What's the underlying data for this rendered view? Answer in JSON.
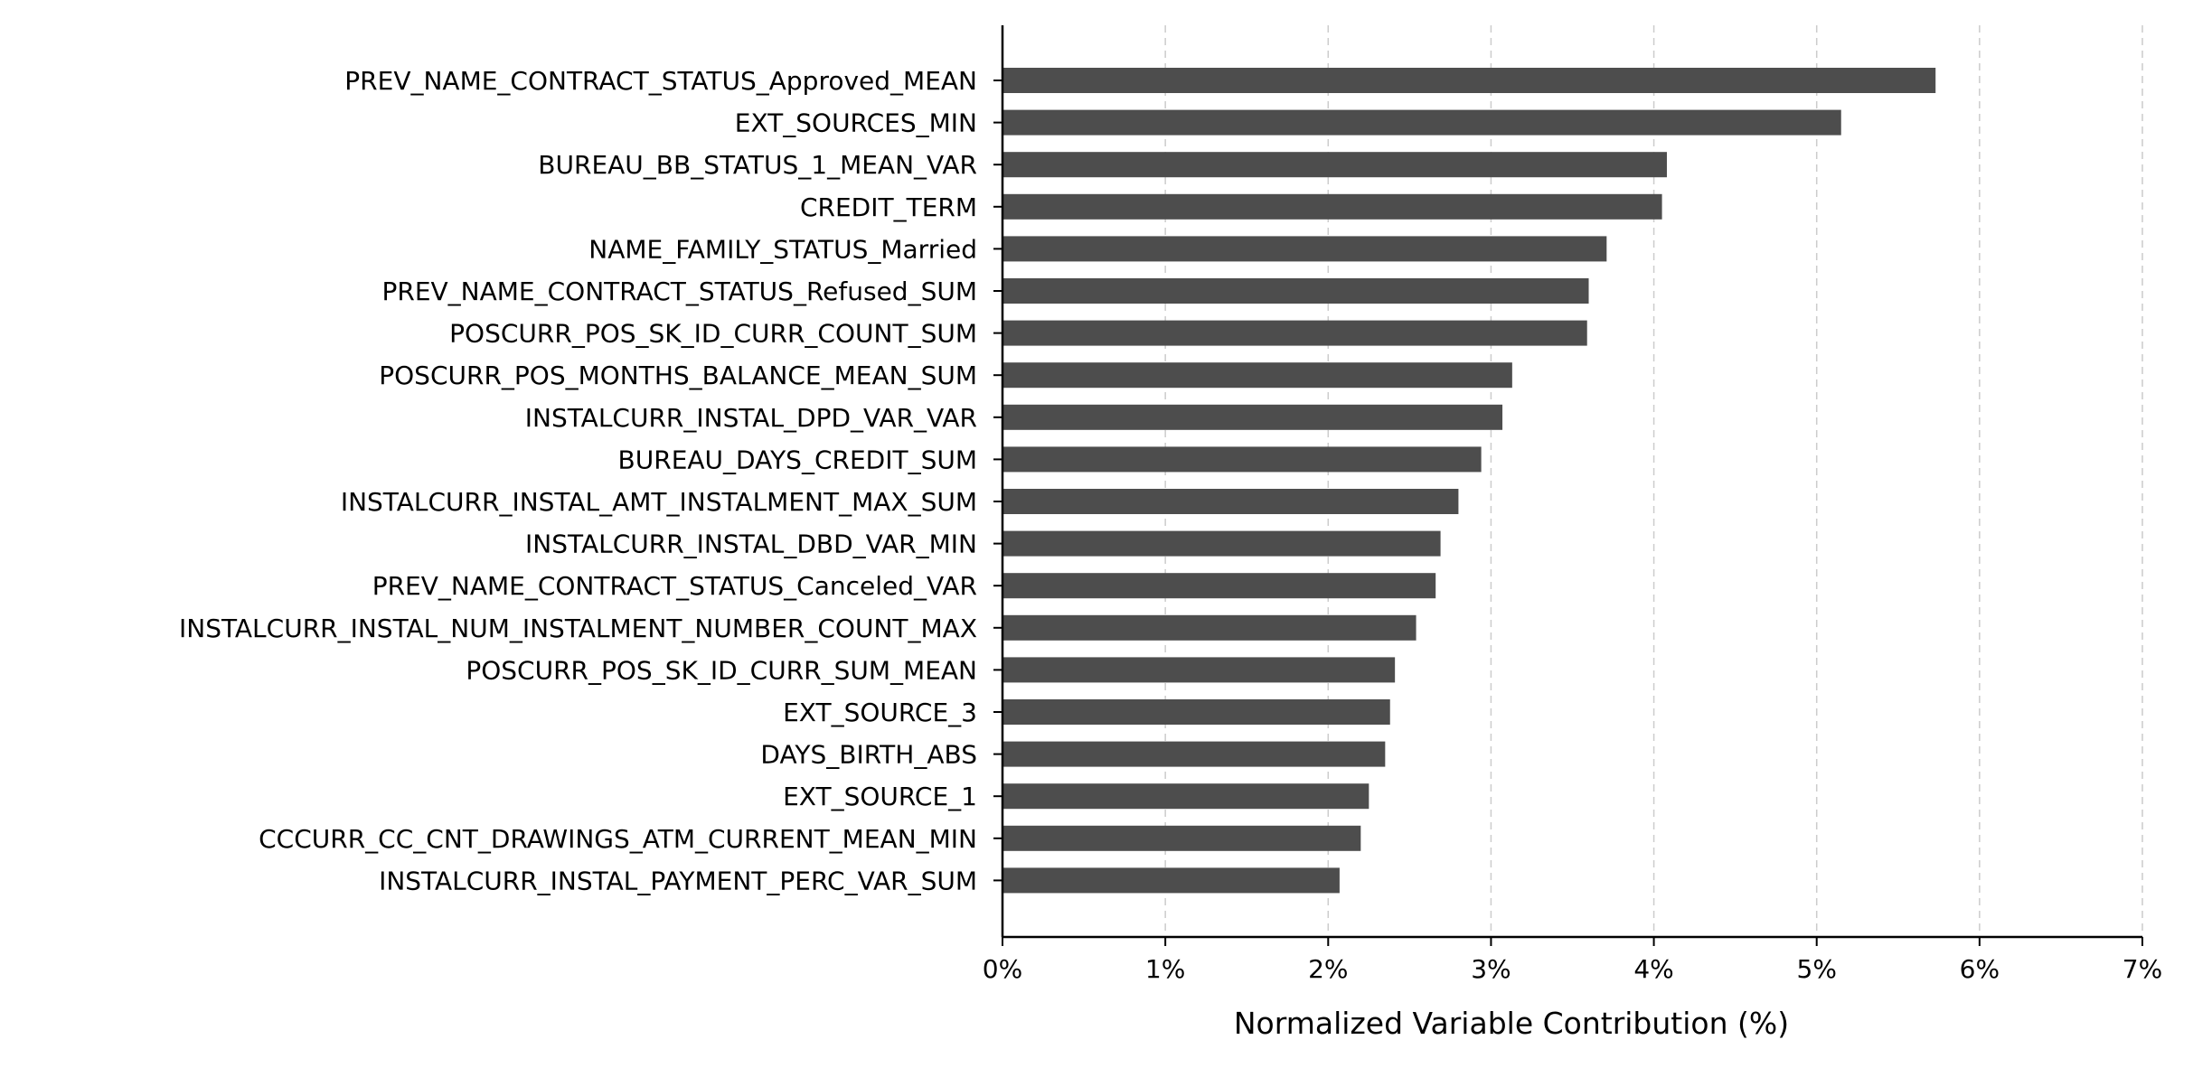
{
  "chart_data": {
    "type": "bar",
    "orientation": "horizontal",
    "title": "",
    "xlabel": "Normalized Variable Contribution (%)",
    "ylabel": "",
    "xlim": [
      0,
      7
    ],
    "x_ticks": [
      0,
      1,
      2,
      3,
      4,
      5,
      6,
      7
    ],
    "x_tick_labels": [
      "0%",
      "1%",
      "2%",
      "3%",
      "4%",
      "5%",
      "6%",
      "7%"
    ],
    "grid": "vertical dashed gridlines",
    "legend": "none",
    "bar_color": "#4d4d4d",
    "categories": [
      "PREV_NAME_CONTRACT_STATUS_Approved_MEAN",
      "EXT_SOURCES_MIN",
      "BUREAU_BB_STATUS_1_MEAN_VAR",
      "CREDIT_TERM",
      "NAME_FAMILY_STATUS_Married",
      "PREV_NAME_CONTRACT_STATUS_Refused_SUM",
      "POSCURR_POS_SK_ID_CURR_COUNT_SUM",
      "POSCURR_POS_MONTHS_BALANCE_MEAN_SUM",
      "INSTALCURR_INSTAL_DPD_VAR_VAR",
      "BUREAU_DAYS_CREDIT_SUM",
      "INSTALCURR_INSTAL_AMT_INSTALMENT_MAX_SUM",
      "INSTALCURR_INSTAL_DBD_VAR_MIN",
      "PREV_NAME_CONTRACT_STATUS_Canceled_VAR",
      "INSTALCURR_INSTAL_NUM_INSTALMENT_NUMBER_COUNT_MAX",
      "POSCURR_POS_SK_ID_CURR_SUM_MEAN",
      "EXT_SOURCE_3",
      "DAYS_BIRTH_ABS",
      "EXT_SOURCE_1",
      "CCCURR_CC_CNT_DRAWINGS_ATM_CURRENT_MEAN_MIN",
      "INSTALCURR_INSTAL_PAYMENT_PERC_VAR_SUM"
    ],
    "values": [
      5.73,
      5.15,
      4.08,
      4.05,
      3.71,
      3.6,
      3.59,
      3.13,
      3.07,
      2.94,
      2.8,
      2.69,
      2.66,
      2.54,
      2.41,
      2.38,
      2.35,
      2.25,
      2.2,
      2.07
    ]
  }
}
